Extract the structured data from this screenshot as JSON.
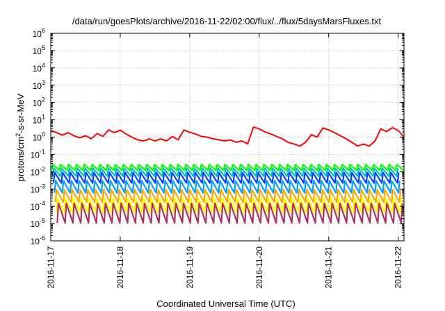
{
  "chart_data": {
    "type": "line",
    "title": "/data/run/goesPlots/archive/2016-11-22/02:00/flux/../flux/5daysMarsFluxes.txt",
    "xlabel": "Coordinated Universal Time (UTC)",
    "ylabel": {
      "pre": "protons/cm",
      "sup": "2",
      "post": "-s-sr-MeV"
    },
    "yscale": "log",
    "ylim": [
      1e-06,
      1000000.0
    ],
    "y_ticks": [
      {
        "base": "10",
        "exp": "-6"
      },
      {
        "base": "10",
        "exp": "-5"
      },
      {
        "base": "10",
        "exp": "-4"
      },
      {
        "base": "10",
        "exp": "-3"
      },
      {
        "base": "10",
        "exp": "-2"
      },
      {
        "base": "10",
        "exp": "-1"
      },
      {
        "base": "10",
        "exp": "0"
      },
      {
        "base": "10",
        "exp": "1"
      },
      {
        "base": "10",
        "exp": "2"
      },
      {
        "base": "10",
        "exp": "3"
      },
      {
        "base": "10",
        "exp": "4"
      },
      {
        "base": "10",
        "exp": "5"
      },
      {
        "base": "10",
        "exp": "6"
      }
    ],
    "xlim": [
      "2016-11-17",
      "2016-11-22 02:00"
    ],
    "x_ticks": [
      "2016-11-17",
      "2016-11-18",
      "2016-11-19",
      "2016-11-20",
      "2016-11-21",
      "2016-11-22"
    ],
    "grid": true,
    "series": [
      {
        "color": "#ff0000",
        "x": [
          "2016-11-17 00:00",
          "2016-11-17 02:00",
          "2016-11-17 04:00",
          "2016-11-17 06:00",
          "2016-11-17 08:00",
          "2016-11-17 10:00",
          "2016-11-17 12:00",
          "2016-11-17 14:00",
          "2016-11-17 16:00",
          "2016-11-17 18:00",
          "2016-11-17 20:00",
          "2016-11-17 22:00",
          "2016-11-18 00:00",
          "2016-11-18 02:00",
          "2016-11-18 04:00",
          "2016-11-18 06:00",
          "2016-11-18 08:00",
          "2016-11-18 10:00",
          "2016-11-18 12:00",
          "2016-11-18 14:00",
          "2016-11-18 16:00",
          "2016-11-18 18:00",
          "2016-11-18 20:00",
          "2016-11-18 22:00",
          "2016-11-19 00:00",
          "2016-11-19 02:00",
          "2016-11-19 04:00",
          "2016-11-19 06:00",
          "2016-11-19 08:00",
          "2016-11-19 10:00",
          "2016-11-19 12:00",
          "2016-11-19 14:00",
          "2016-11-19 16:00",
          "2016-11-19 18:00",
          "2016-11-19 20:00",
          "2016-11-19 22:00",
          "2016-11-20 00:00",
          "2016-11-20 02:00",
          "2016-11-20 04:00",
          "2016-11-20 06:00",
          "2016-11-20 08:00",
          "2016-11-20 10:00",
          "2016-11-20 12:00",
          "2016-11-20 14:00",
          "2016-11-20 16:00",
          "2016-11-20 18:00",
          "2016-11-20 20:00",
          "2016-11-20 22:00",
          "2016-11-21 00:00",
          "2016-11-21 02:00",
          "2016-11-21 04:00",
          "2016-11-21 06:00",
          "2016-11-21 08:00",
          "2016-11-21 10:00",
          "2016-11-21 12:00",
          "2016-11-21 14:00",
          "2016-11-21 16:00",
          "2016-11-21 18:00",
          "2016-11-21 20:00",
          "2016-11-21 22:00",
          "2016-11-22 00:00",
          "2016-11-22 02:00"
        ],
        "y": [
          2.4,
          1.8,
          1.3,
          1.8,
          1.2,
          0.9,
          1.2,
          0.8,
          1.6,
          1.1,
          2.6,
          1.8,
          2.5,
          1.5,
          1.0,
          0.7,
          0.6,
          0.8,
          0.6,
          0.8,
          0.6,
          1.1,
          0.7,
          2.6,
          1.9,
          1.5,
          1.1,
          1.0,
          0.8,
          0.7,
          0.6,
          0.7,
          0.5,
          0.6,
          0.4,
          3.8,
          3.0,
          2.0,
          1.5,
          1.1,
          0.8,
          0.5,
          0.4,
          0.3,
          0.5,
          1.4,
          1.0,
          3.4,
          2.6,
          1.8,
          1.2,
          0.8,
          0.5,
          0.3,
          0.4,
          0.3,
          0.6,
          3.0,
          2.1,
          3.5,
          2.4,
          1.0
        ]
      },
      {
        "color": "#00ff00",
        "pattern": "sawtooth",
        "period_hours": 2.7,
        "peak": 0.026,
        "trough": 0.012
      },
      {
        "color": "#00bfbf",
        "pattern": "sawtooth",
        "period_hours": 2.7,
        "peak": 0.016,
        "trough": 0.0055
      },
      {
        "color": "#0040ff",
        "pattern": "sawtooth",
        "period_hours": 2.7,
        "peak": 0.009,
        "trough": 0.0022
      },
      {
        "color": "#00a0ff",
        "pattern": "sawtooth",
        "period_hours": 2.7,
        "peak": 0.003,
        "trough": 0.0006
      },
      {
        "color": "#ffa500",
        "pattern": "sawtooth",
        "period_hours": 2.7,
        "peak": 0.0009,
        "trough": 0.00017
      },
      {
        "color": "#ffff00",
        "pattern": "sawtooth",
        "period_hours": 2.7,
        "peak": 0.0003,
        "trough": 4.5e-05
      },
      {
        "color": "#b03060",
        "pattern": "sawtooth",
        "period_hours": 2.7,
        "peak": 0.00015,
        "trough": 1.1e-05
      }
    ]
  }
}
